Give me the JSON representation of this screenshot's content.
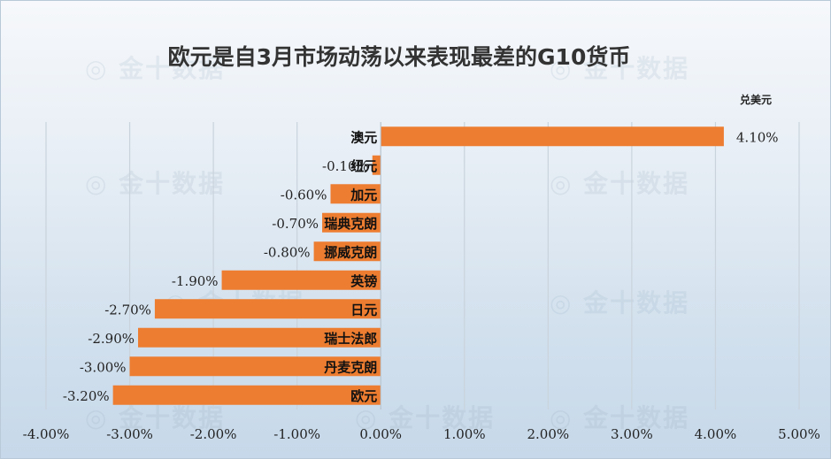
{
  "chart_data": {
    "type": "bar",
    "orientation": "horizontal",
    "title": "欧元是自3月市场动荡以来表现最差的G10货币",
    "unit_label": "兑美元",
    "categories": [
      "澳元",
      "纽元",
      "加元",
      "瑞典克朗",
      "挪威克朗",
      "英镑",
      "日元",
      "瑞士法郎",
      "丹麦克朗",
      "欧元"
    ],
    "values": [
      4.1,
      -0.1,
      -0.6,
      -0.7,
      -0.8,
      -1.9,
      -2.7,
      -2.9,
      -3.0,
      -3.2
    ],
    "value_labels": [
      "4.10%",
      "-0.10%",
      "-0.60%",
      "-0.70%",
      "-0.80%",
      "-1.90%",
      "-2.70%",
      "-2.90%",
      "-3.00%",
      "-3.20%"
    ],
    "xlim": [
      -4,
      5
    ],
    "x_ticks": [
      "-4.00%",
      "-3.00%",
      "-2.00%",
      "-1.00%",
      "0.00%",
      "1.00%",
      "2.00%",
      "3.00%",
      "4.00%",
      "5.00%"
    ],
    "grid": true,
    "bar_color": "#ed7d31"
  },
  "watermark_text": "金十数据"
}
